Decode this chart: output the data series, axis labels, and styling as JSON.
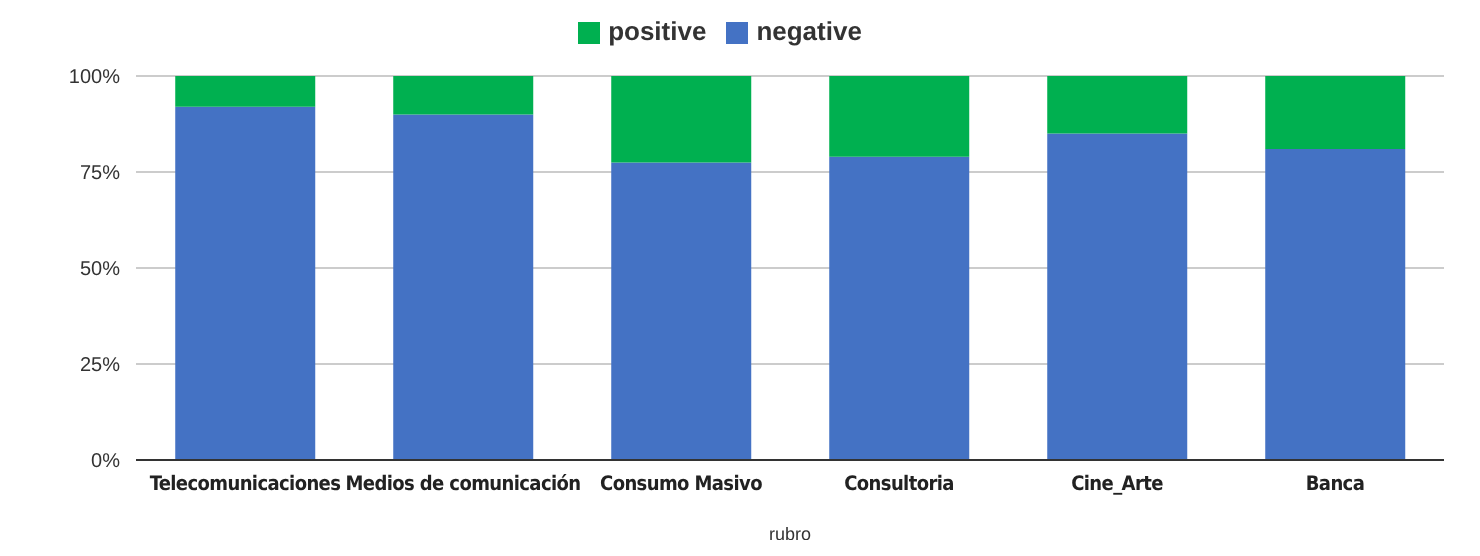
{
  "chart_data": {
    "type": "bar",
    "stacked": true,
    "xlabel": "rubro",
    "categories": [
      "Telecomunicaciones",
      "Medios de comunicación",
      "Consumo Masivo",
      "Consultoria",
      "Cine_Arte",
      "Banca"
    ],
    "series": [
      {
        "name": "negative",
        "color": "#4472c4",
        "values": [
          92,
          90,
          77.5,
          79,
          85,
          81
        ]
      },
      {
        "name": "positive",
        "color": "#00b050",
        "values": [
          8,
          10,
          22.5,
          21,
          15,
          19
        ]
      }
    ],
    "ylim": [
      0,
      100
    ],
    "yticks": [
      {
        "value": 0,
        "label": "0%"
      },
      {
        "value": 25,
        "label": "25%"
      },
      {
        "value": 50,
        "label": "50%"
      },
      {
        "value": 75,
        "label": "75%"
      },
      {
        "value": 100,
        "label": "100%"
      }
    ],
    "grid": "y",
    "legend": "top"
  }
}
